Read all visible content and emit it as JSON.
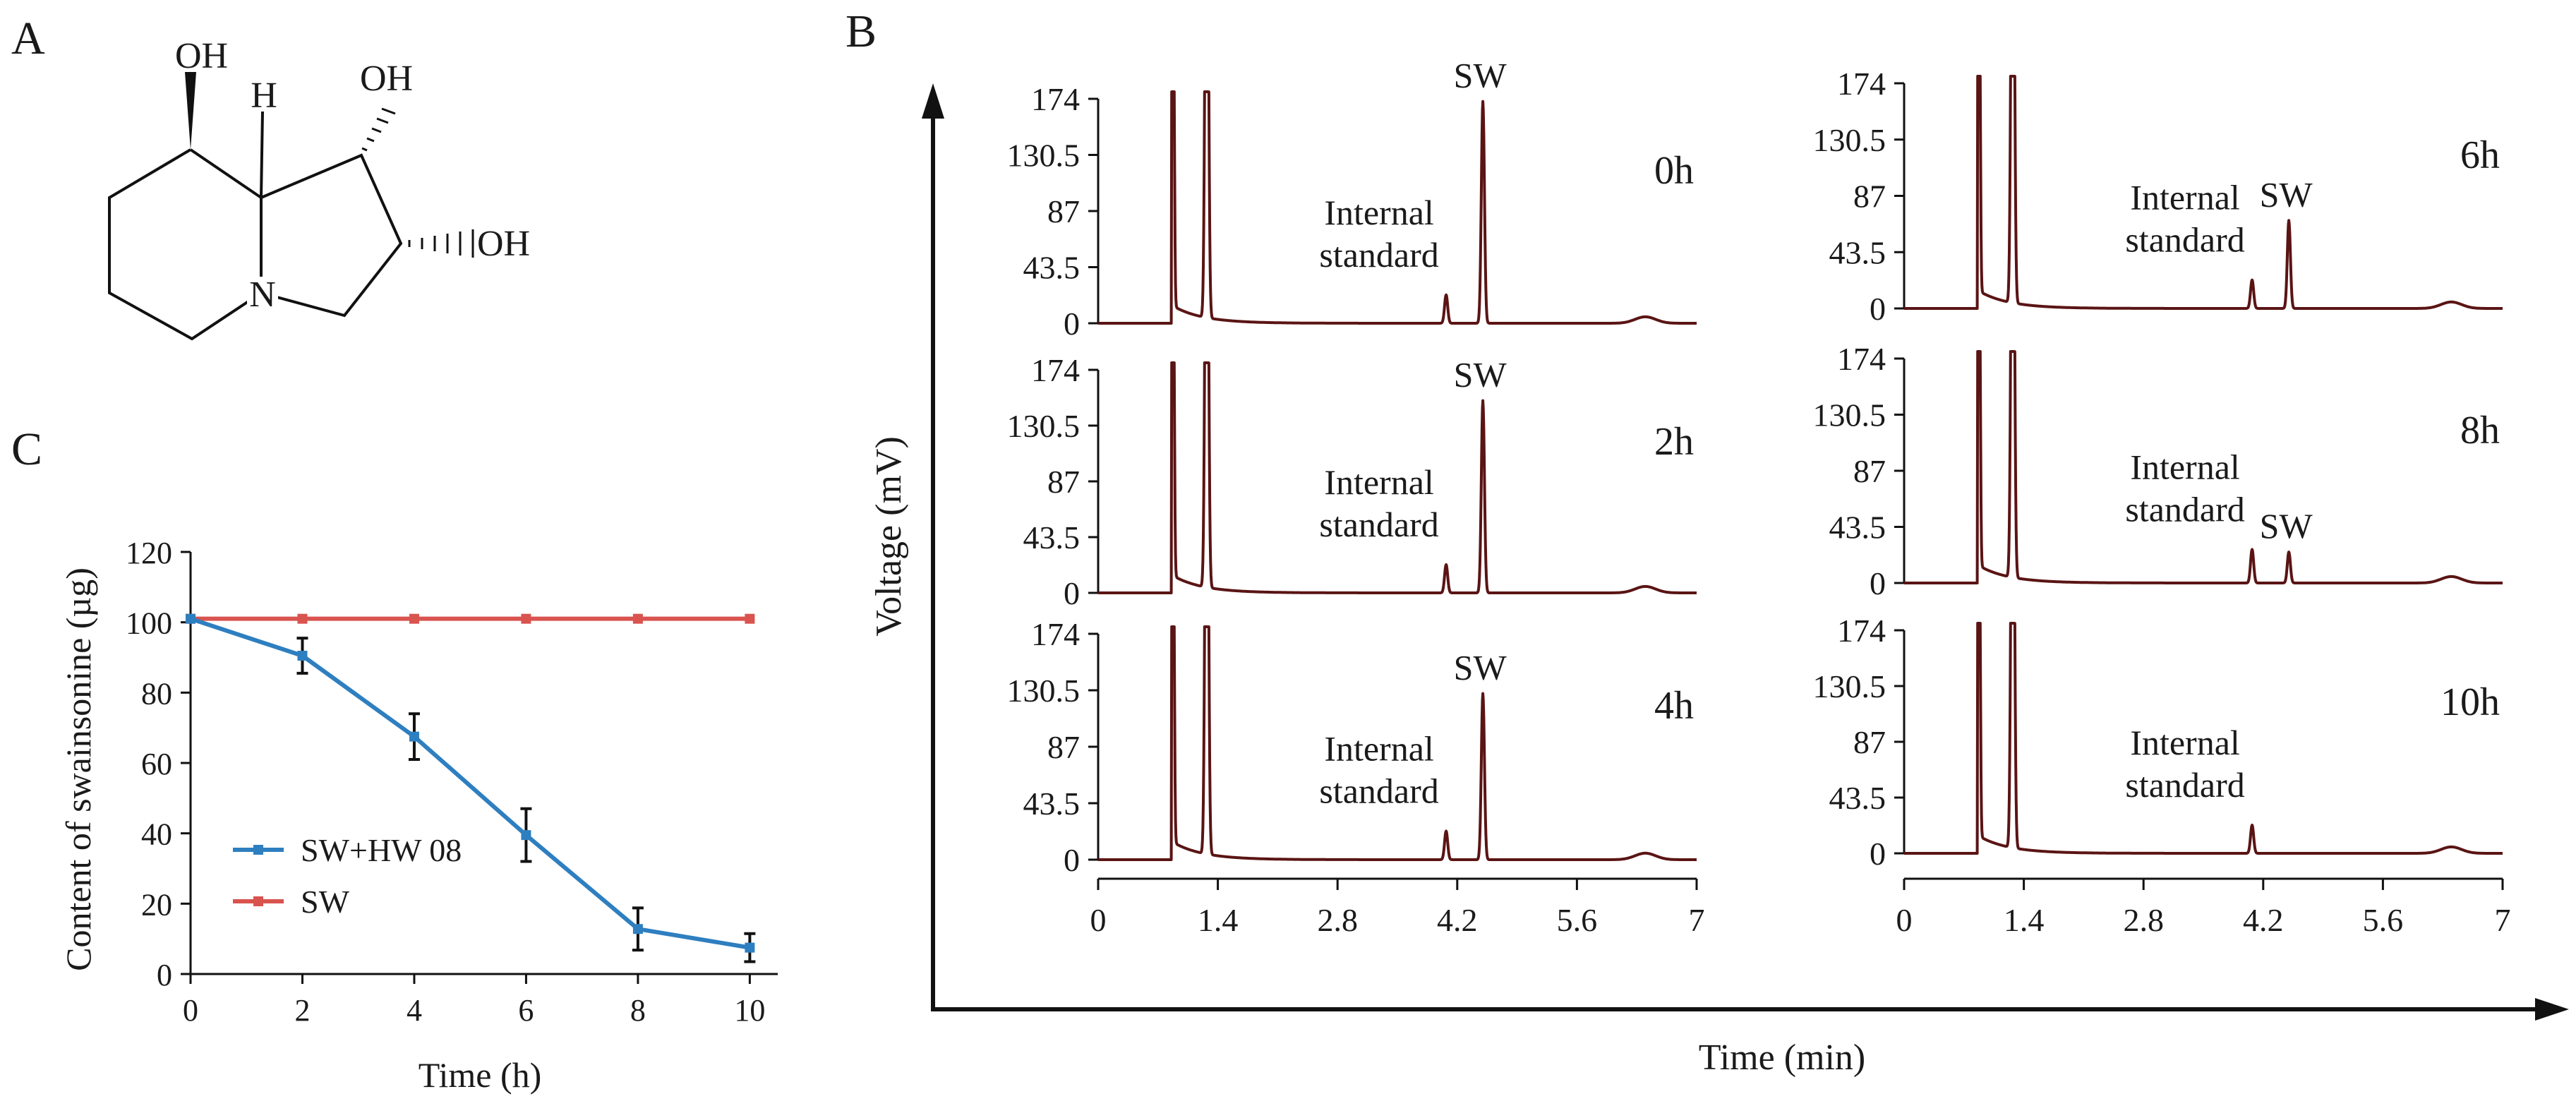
{
  "panel_labels": {
    "a": "A",
    "b": "B",
    "c": "C"
  },
  "structure": {
    "oh_top": "OH",
    "oh_right_top": "OH",
    "oh_right": "OH",
    "h_label": "H",
    "n_label": "N"
  },
  "chart_data": [
    {
      "type": "line",
      "panel": "C",
      "xlabel": "Time (h)",
      "ylabel": "Content of swainsonine (µg)",
      "x": [
        0,
        2,
        4,
        6,
        8,
        10
      ],
      "xlim": [
        0,
        10.5
      ],
      "ylim": [
        0,
        120
      ],
      "xticks": [
        "0",
        "2",
        "4",
        "6",
        "8",
        "10"
      ],
      "yticks": [
        "0",
        "20",
        "40",
        "60",
        "80",
        "100",
        "120"
      ],
      "grid": false,
      "legend": "center-left",
      "series": [
        {
          "name": "SW+HW 08",
          "color": "#2e7fc0",
          "values": [
            101,
            90.5,
            67.5,
            39.5,
            12.8,
            7.5
          ],
          "errors": [
            0,
            5,
            6.5,
            7.5,
            6,
            4
          ]
        },
        {
          "name": "SW",
          "color": "#d9534f",
          "values": [
            101,
            101,
            101,
            101,
            101,
            101
          ],
          "errors": [
            0,
            0,
            0,
            0,
            0,
            0
          ]
        }
      ]
    },
    {
      "type": "line",
      "panel": "B",
      "xlabel": "Time (min)",
      "ylabel": "Voltage (mV)",
      "xlim": [
        0,
        7
      ],
      "ylim": [
        0,
        174
      ],
      "xticks": [
        "0",
        "1.4",
        "2.8",
        "4.2",
        "5.6",
        "7"
      ],
      "yticks": [
        "0",
        "43.5",
        "87",
        "130.5",
        "174"
      ],
      "color": "#5a1414",
      "internal_standard_time": 4.07,
      "sw_time": 4.5,
      "panels": [
        {
          "label": "0h",
          "column": "left",
          "internal_standard_height": 22,
          "sw_height": 172,
          "sw_label": "SW",
          "internal_standard_label": "Internal standard"
        },
        {
          "label": "2h",
          "column": "left",
          "internal_standard_height": 22,
          "sw_height": 150,
          "sw_label": "SW",
          "internal_standard_label": "Internal standard"
        },
        {
          "label": "4h",
          "column": "left",
          "internal_standard_height": 22,
          "sw_height": 128,
          "sw_label": "SW",
          "internal_standard_label": "Internal standard"
        },
        {
          "label": "6h",
          "column": "right",
          "internal_standard_height": 22,
          "sw_height": 68,
          "sw_label": "SW",
          "internal_standard_label": "Internal standard"
        },
        {
          "label": "8h",
          "column": "right",
          "internal_standard_height": 26,
          "sw_height": 24,
          "sw_label": "SW",
          "internal_standard_label": "Internal standard"
        },
        {
          "label": "10h",
          "column": "right",
          "internal_standard_height": 22,
          "sw_height": 0,
          "sw_label": "",
          "internal_standard_label": "Internal standard"
        }
      ]
    }
  ]
}
